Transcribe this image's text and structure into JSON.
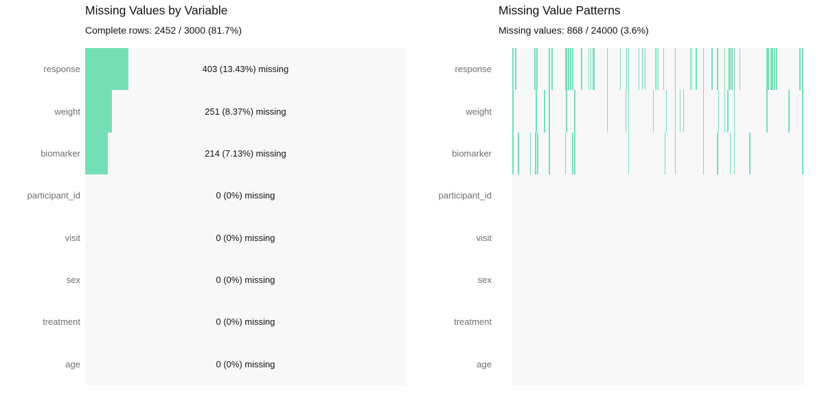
{
  "colors": {
    "accent_green": "#74dfb5",
    "panel_background": "#f8f8f8",
    "row_label_color": "#6e6e6e",
    "text_color": "#111111",
    "page_background": "#ffffff"
  },
  "chart_data": [
    {
      "type": "bar",
      "orientation": "horizontal",
      "title": "Missing Values by Variable",
      "subtitle": "Complete rows: 2452 / 3000 (81.7%)",
      "categories": [
        "response",
        "weight",
        "biomarker",
        "participant_id",
        "visit",
        "sex",
        "treatment",
        "age"
      ],
      "values": [
        403,
        251,
        214,
        0,
        0,
        0,
        0,
        0
      ],
      "pct": [
        13.43,
        8.37,
        7.13,
        0,
        0,
        0,
        0,
        0
      ],
      "annotations": [
        "403 (13.43%) missing",
        "251 (8.37%) missing",
        "214 (7.13%) missing",
        "0 (0%) missing",
        "0 (0%) missing",
        "0 (0%) missing",
        "0 (0%) missing",
        "0 (0%) missing"
      ],
      "n_rows": 3000,
      "complete_rows": 2452,
      "complete_pct": 81.7,
      "xlim": [
        0,
        100
      ],
      "grid": false,
      "legend": false
    },
    {
      "type": "heatmap",
      "title": "Missing Value Patterns",
      "subtitle": "Missing values: 868 / 24000 (3.6%)",
      "rows": [
        "response",
        "weight",
        "biomarker",
        "participant_id",
        "visit",
        "sex",
        "treatment",
        "age"
      ],
      "n_columns": 3000,
      "total_cells": 24000,
      "total_missing": 868,
      "missing_pct": 3.6,
      "missing_by_row": [
        403,
        251,
        214,
        0,
        0,
        0,
        0,
        0
      ],
      "missing_positions_frac": {
        "response": [
          0.005,
          0.014,
          0.08,
          0.087,
          0.129,
          0.139,
          0.184,
          0.188,
          0.195,
          0.202,
          0.209,
          0.24,
          0.264,
          0.271,
          0.278,
          0.282,
          0.327,
          0.372,
          0.393,
          0.4,
          0.435,
          0.447,
          0.456,
          0.492,
          0.496,
          0.501,
          0.52,
          0.56,
          0.612,
          0.616,
          0.631,
          0.656,
          0.685,
          0.704,
          0.729,
          0.744,
          0.748,
          0.753,
          0.762,
          0.781,
          0.873,
          0.878,
          0.887,
          0.892,
          0.899,
          0.906,
          0.986,
          0.995
        ],
        "weight": [
          0.005,
          0.085,
          0.113,
          0.129,
          0.188,
          0.216,
          0.327,
          0.391,
          0.4,
          0.485,
          0.529,
          0.56,
          0.576,
          0.588,
          0.656,
          0.708,
          0.729,
          0.739,
          0.762,
          0.873,
          0.948,
          0.995
        ],
        "biomarker": [
          0.005,
          0.024,
          0.064,
          0.082,
          0.089,
          0.129,
          0.184,
          0.209,
          0.216,
          0.4,
          0.525,
          0.56,
          0.656,
          0.704,
          0.748,
          0.762,
          0.814,
          0.995
        ],
        "participant_id": [],
        "visit": [],
        "sex": [],
        "treatment": [],
        "age": []
      },
      "grid": false,
      "legend": false
    }
  ]
}
